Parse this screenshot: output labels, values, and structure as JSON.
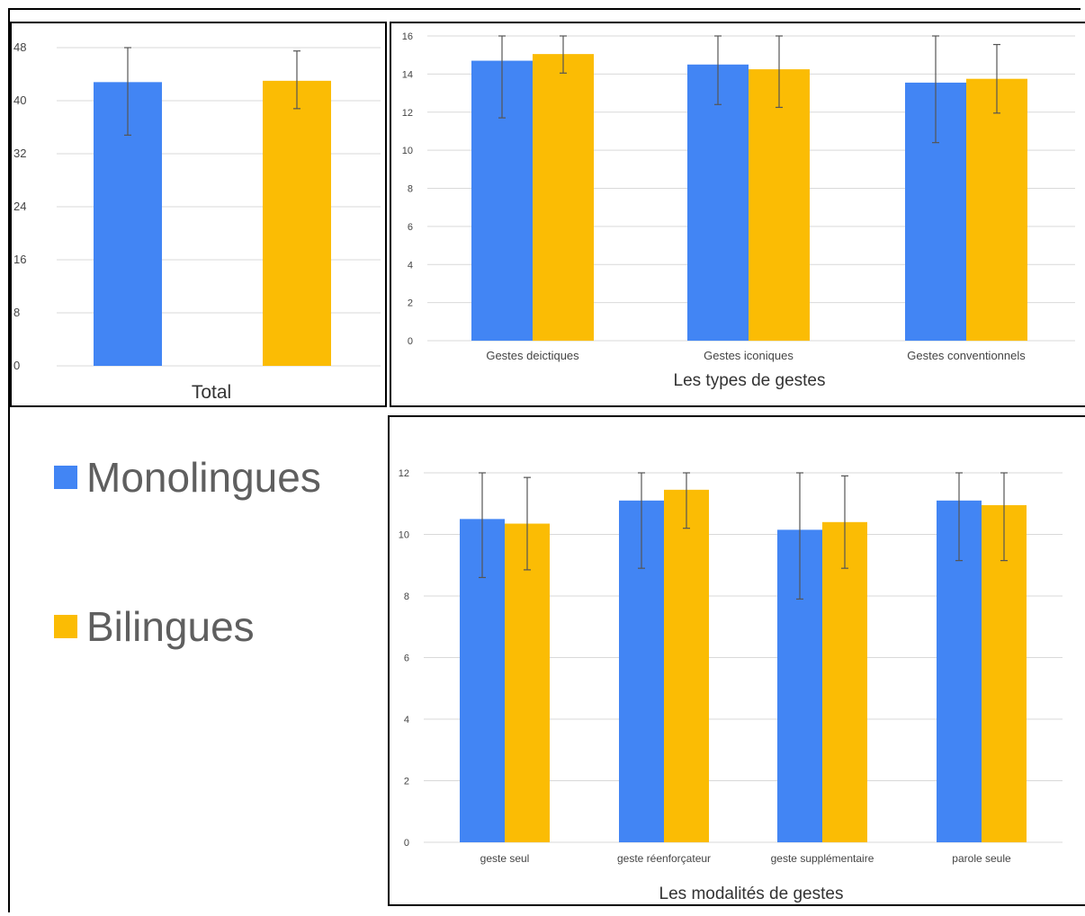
{
  "colors": {
    "monolingues": "#4285F4",
    "bilingues": "#FBBC04",
    "grid": "#d9d9d9",
    "axis_text": "#444444",
    "error_bar": "#555555"
  },
  "legend": {
    "items": [
      {
        "label": "Monolingues",
        "color": "#4285F4"
      },
      {
        "label": "Bilingues",
        "color": "#FBBC04"
      }
    ]
  },
  "chart_data": [
    {
      "id": "total",
      "type": "bar",
      "categories": [
        ""
      ],
      "xlabel": "Total",
      "ylabel": "",
      "ylim": [
        0,
        48
      ],
      "yticks": [
        0,
        8,
        16,
        24,
        32,
        40,
        48
      ],
      "grid": true,
      "series": [
        {
          "name": "Monolingues",
          "values": [
            42.8
          ],
          "error": [
            [
              34.8,
              48.0
            ]
          ]
        },
        {
          "name": "Bilingues",
          "values": [
            43.0
          ],
          "error": [
            [
              38.8,
              47.5
            ]
          ]
        }
      ]
    },
    {
      "id": "types",
      "type": "bar",
      "categories": [
        "Gestes deictiques",
        "Gestes iconiques",
        "Gestes conventionnels"
      ],
      "xlabel": "Les types de gestes",
      "ylabel": "",
      "ylim": [
        0,
        16
      ],
      "yticks": [
        0,
        2,
        4,
        6,
        8,
        10,
        12,
        14,
        16
      ],
      "grid": true,
      "series": [
        {
          "name": "Monolingues",
          "values": [
            14.7,
            14.5,
            13.55
          ],
          "error": [
            [
              11.7,
              16.0
            ],
            [
              12.4,
              16.0
            ],
            [
              10.4,
              16.0
            ]
          ]
        },
        {
          "name": "Bilingues",
          "values": [
            15.05,
            14.25,
            13.75
          ],
          "error": [
            [
              14.05,
              16.0
            ],
            [
              12.25,
              16.0
            ],
            [
              11.95,
              15.55
            ]
          ]
        }
      ]
    },
    {
      "id": "modalites",
      "type": "bar",
      "categories": [
        "geste seul",
        "geste réenforçateur",
        "geste supplémentaire",
        "parole seule"
      ],
      "xlabel": "Les modalités de gestes",
      "ylabel": "",
      "ylim": [
        0,
        12
      ],
      "yticks": [
        0,
        2,
        4,
        6,
        8,
        10,
        12
      ],
      "grid": true,
      "series": [
        {
          "name": "Monolingues",
          "values": [
            10.5,
            11.1,
            10.15,
            11.1
          ],
          "error": [
            [
              8.6,
              12.0
            ],
            [
              8.9,
              12.0
            ],
            [
              7.9,
              12.0
            ],
            [
              9.15,
              12.0
            ]
          ]
        },
        {
          "name": "Bilingues",
          "values": [
            10.35,
            11.45,
            10.4,
            10.95
          ],
          "error": [
            [
              8.85,
              11.85
            ],
            [
              10.2,
              12.0
            ],
            [
              8.9,
              11.9
            ],
            [
              9.15,
              12.0
            ]
          ]
        }
      ]
    }
  ]
}
